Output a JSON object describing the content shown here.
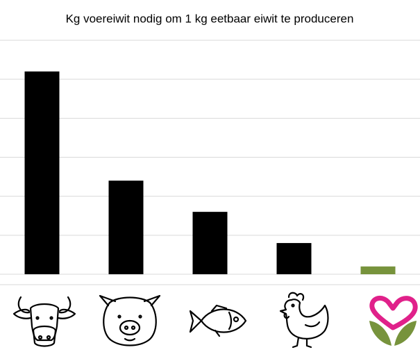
{
  "chart_data": {
    "type": "bar",
    "title": "Kg voereiwit nodig om 1 kg eetbaar eiwit te produceren",
    "categories": [
      null,
      null,
      null,
      null,
      null
    ],
    "values": [
      5.2,
      2.4,
      1.6,
      0.8,
      0.2
    ],
    "colors": [
      "#000000",
      "#000000",
      "#000000",
      "#000000",
      "#77933c"
    ],
    "ylim": [
      0,
      6
    ],
    "yticks": [
      0,
      1,
      2,
      3,
      4,
      5,
      6
    ],
    "grid": true
  }
}
